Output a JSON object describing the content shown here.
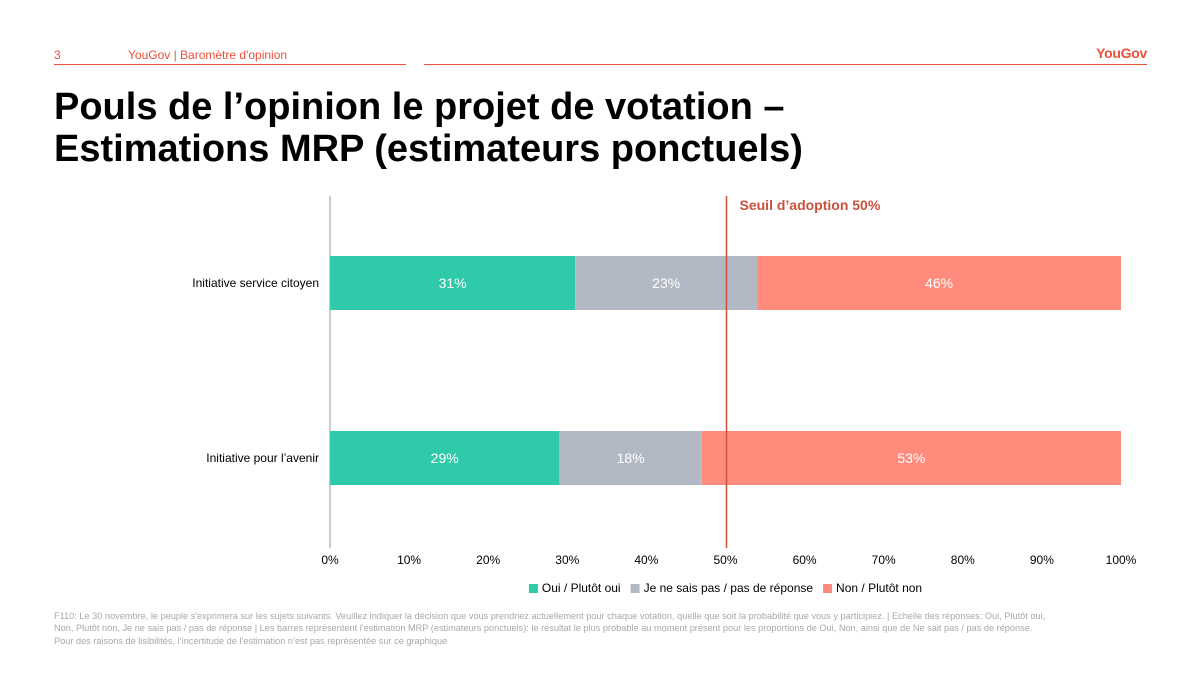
{
  "header": {
    "page_number": "3",
    "text": "YouGov | Baromètre d'opinion",
    "brand": "YouGov"
  },
  "title_line1": "Pouls de l’opinion le projet de votation –",
  "title_line2": "Estimations MRP (estimateurs ponctuels)",
  "chart_data": {
    "type": "bar",
    "orientation": "horizontal",
    "stacked": true,
    "categories": [
      "Initiative service citoyen",
      "Initiative pour l’avenir"
    ],
    "series": [
      {
        "name": "Oui / Plutôt oui",
        "values": [
          31,
          29
        ],
        "labels": [
          "31%",
          "29%"
        ],
        "color": "#2fcaaa"
      },
      {
        "name": "Je ne sais pas / pas de réponse",
        "values": [
          23,
          18
        ],
        "labels": [
          "23%",
          "18%"
        ],
        "color": "#b3b9c4"
      },
      {
        "name": "Non / Plutôt non",
        "values": [
          46,
          53
        ],
        "labels": [
          "46%",
          "53%"
        ],
        "color": "#ff8b7c"
      }
    ],
    "xlim": [
      0,
      100
    ],
    "xticks": [
      0,
      10,
      20,
      30,
      40,
      50,
      60,
      70,
      80,
      90,
      100
    ],
    "xtick_labels": [
      "0%",
      "10%",
      "20%",
      "30%",
      "40%",
      "50%",
      "60%",
      "70%",
      "80%",
      "90%",
      "100%"
    ],
    "threshold": {
      "value": 50,
      "label": "Seuil d’adoption 50%",
      "color": "#c9513c"
    },
    "legend_position": "bottom",
    "grid": false
  },
  "footnote": {
    "line1": "F110: Le 30 novembre, le peuple s'exprimera sur les sujets suivants. Veuillez indiquer la décision que vous prendriez actuellement pour chaque votation, quelle que soit la probabilité que vous y participiez. | Echelle des réponses: Oui, Plutôt oui,",
    "line2": "Non, Plutôt non, Je ne sais pas / pas de réponse | Les barres représentent l'estimation MRP (estimateurs ponctuels): le résultat le plus probable au moment présent pour les proportions de Oui, Non, ainsi que de Ne sait pas / pas de réponse.",
    "line3": "Pour des raisons de lisibilités, l’incertitude de l’estimation n’est pas représentée sur ce graphique"
  }
}
